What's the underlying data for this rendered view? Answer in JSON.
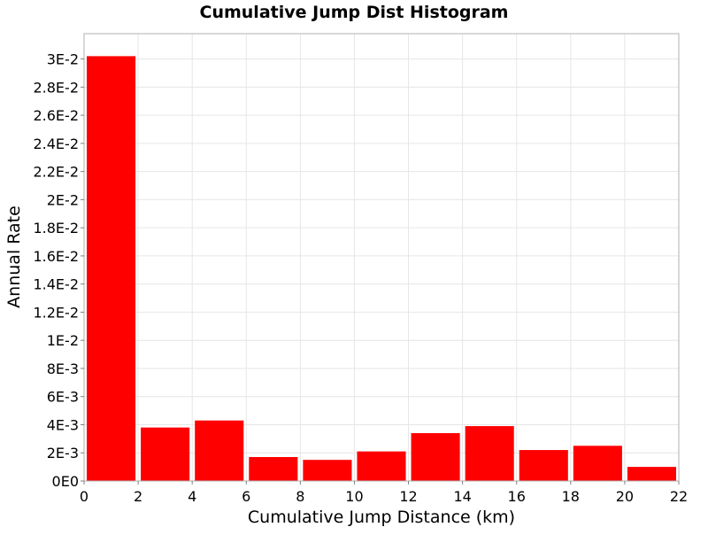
{
  "chart_data": {
    "type": "bar",
    "title": "Cumulative Jump Dist Histogram",
    "xlabel": "Cumulative Jump Distance (km)",
    "ylabel": "Annual Rate",
    "xlim": [
      0,
      22
    ],
    "ylim": [
      0,
      0.0318
    ],
    "bin_width": 2,
    "bin_starts": [
      0,
      2,
      4,
      6,
      8,
      10,
      12,
      14,
      16,
      18,
      20
    ],
    "values": [
      0.0302,
      0.0038,
      0.0043,
      0.0017,
      0.0015,
      0.0021,
      0.0034,
      0.0039,
      0.0022,
      0.0025,
      0.001
    ],
    "x_ticks": [
      {
        "value": 0,
        "label": "0"
      },
      {
        "value": 2,
        "label": "2"
      },
      {
        "value": 4,
        "label": "4"
      },
      {
        "value": 6,
        "label": "6"
      },
      {
        "value": 8,
        "label": "8"
      },
      {
        "value": 10,
        "label": "10"
      },
      {
        "value": 12,
        "label": "12"
      },
      {
        "value": 14,
        "label": "14"
      },
      {
        "value": 16,
        "label": "16"
      },
      {
        "value": 18,
        "label": "18"
      },
      {
        "value": 20,
        "label": "20"
      },
      {
        "value": 22,
        "label": "22"
      }
    ],
    "y_ticks": [
      {
        "value": 0,
        "label": "0E0"
      },
      {
        "value": 0.002,
        "label": "2E-3"
      },
      {
        "value": 0.004,
        "label": "4E-3"
      },
      {
        "value": 0.006,
        "label": "6E-3"
      },
      {
        "value": 0.008,
        "label": "8E-3"
      },
      {
        "value": 0.01,
        "label": "1E-2"
      },
      {
        "value": 0.012,
        "label": "1.2E-2"
      },
      {
        "value": 0.014,
        "label": "1.4E-2"
      },
      {
        "value": 0.016,
        "label": "1.6E-2"
      },
      {
        "value": 0.018,
        "label": "1.8E-2"
      },
      {
        "value": 0.02,
        "label": "2E-2"
      },
      {
        "value": 0.022,
        "label": "2.2E-2"
      },
      {
        "value": 0.024,
        "label": "2.4E-2"
      },
      {
        "value": 0.026,
        "label": "2.6E-2"
      },
      {
        "value": 0.028,
        "label": "2.8E-2"
      },
      {
        "value": 0.03,
        "label": "3E-2"
      }
    ],
    "grid": true,
    "legend": "none",
    "colors": {
      "bar": "#ff0000",
      "grid": "#e6e6e6",
      "plot_border": "#b0b0b0",
      "background": "#ffffff"
    }
  }
}
